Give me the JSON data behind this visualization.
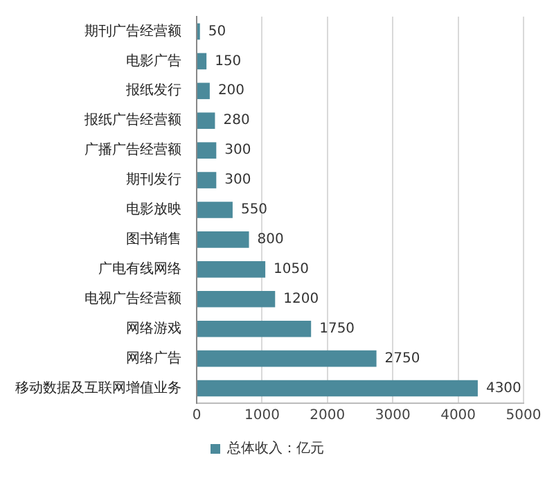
{
  "chart_data": {
    "type": "bar",
    "orientation": "horizontal",
    "categories": [
      "期刊广告经营额",
      "电影广告",
      "报纸发行",
      "报纸广告经营额",
      "广播广告经营额",
      "期刊发行",
      "电影放映",
      "图书销售",
      "广电有线网络",
      "电视广告经营额",
      "网络游戏",
      "网络广告",
      "移动数据及互联网增值业务"
    ],
    "series": [
      {
        "name": "总体收入：亿元",
        "color": "#4b8a9b",
        "values": [
          50,
          150,
          200,
          280,
          300,
          300,
          550,
          800,
          1050,
          1200,
          1750,
          2750,
          4300
        ]
      }
    ],
    "xlim": [
      0,
      5000
    ],
    "xticks": [
      0,
      1000,
      2000,
      3000,
      4000,
      5000
    ],
    "grid": "x",
    "legend": "bottom",
    "data_labels": true
  }
}
